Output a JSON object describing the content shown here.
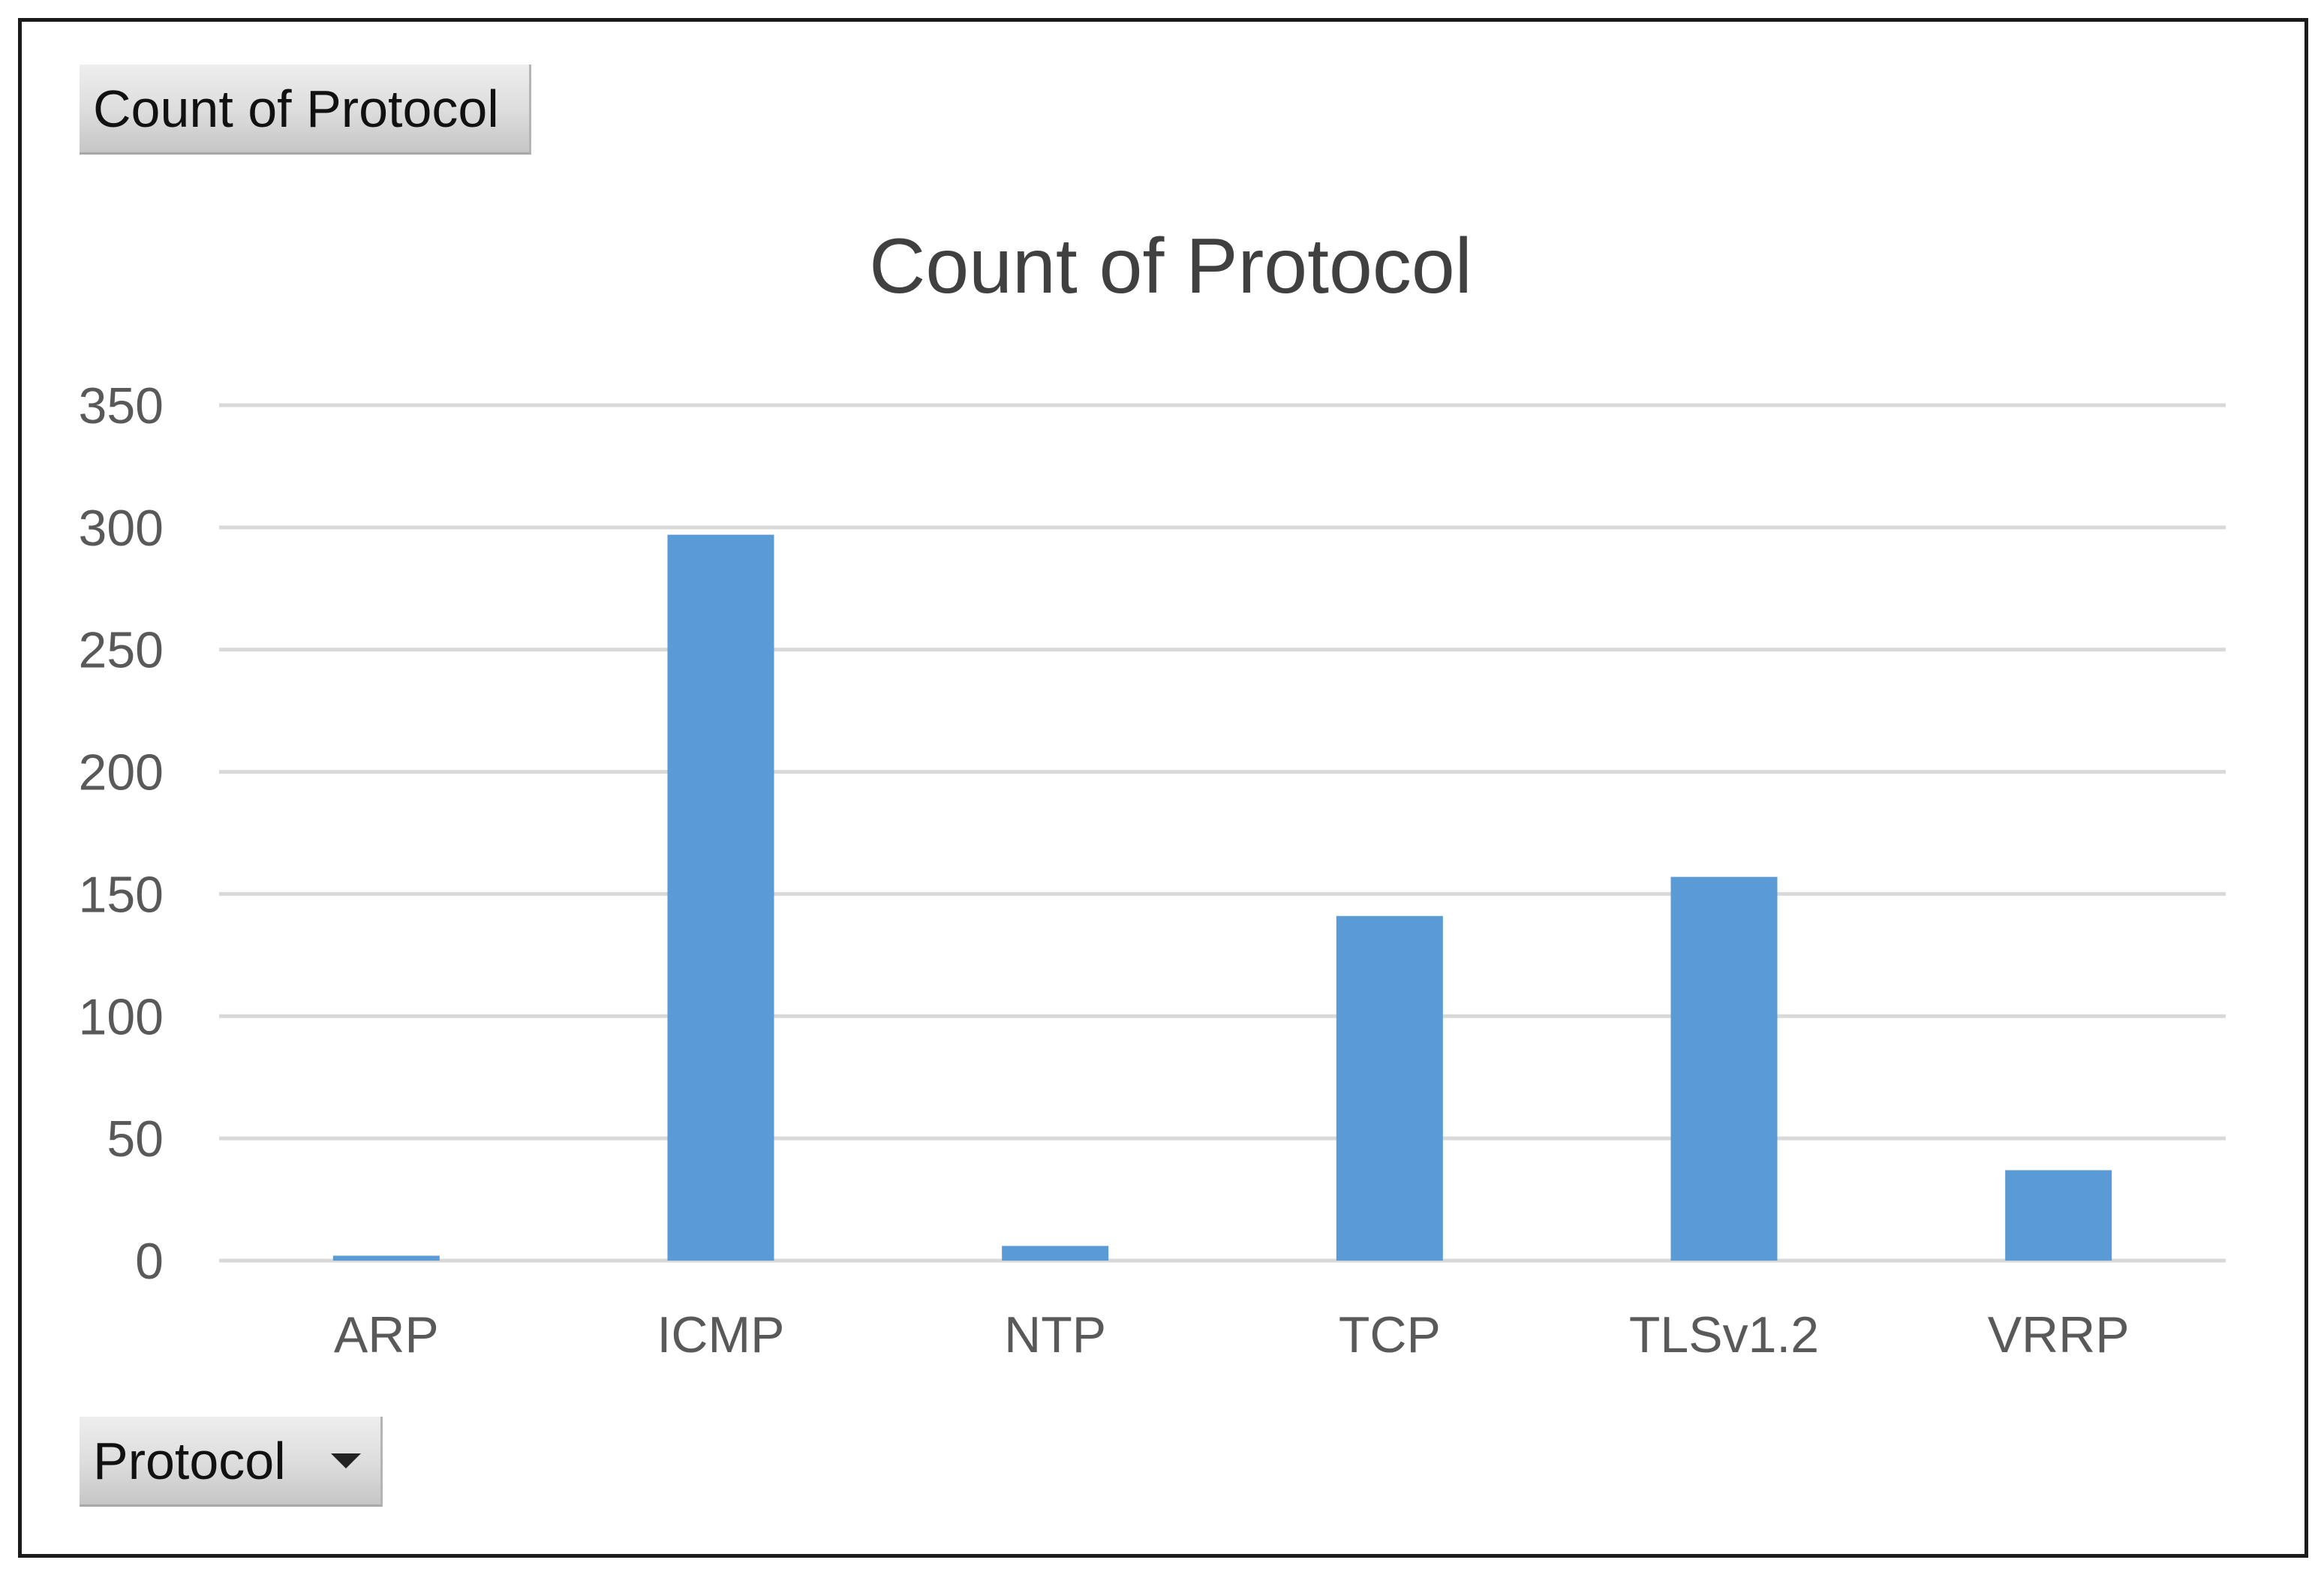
{
  "pivot": {
    "value_field_label": "Count of Protocol",
    "axis_field_label": "Protocol",
    "axis_field_icon": "chevron-down-icon"
  },
  "chart_data": {
    "type": "bar",
    "title": "Count of Protocol",
    "xlabel": "",
    "ylabel": "",
    "categories": [
      "ARP",
      "ICMP",
      "NTP",
      "TCP",
      "TLSv1.2",
      "VRRP"
    ],
    "series": [
      {
        "values": [
          2,
          297,
          6,
          141,
          157,
          37
        ]
      }
    ],
    "ylim": [
      0,
      350
    ],
    "yticks": [
      0,
      50,
      100,
      150,
      200,
      250,
      300,
      350
    ],
    "grid": true,
    "legend": "none",
    "colors": {
      "bar": "#5b9bd5",
      "grid": "#d9d9d9",
      "text": "#595959",
      "title": "#404040"
    }
  }
}
